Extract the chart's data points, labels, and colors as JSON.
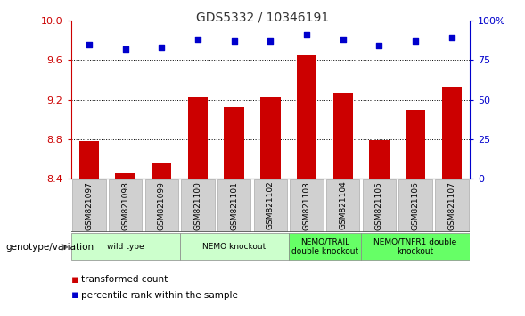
{
  "title": "GDS5332 / 10346191",
  "samples": [
    "GSM821097",
    "GSM821098",
    "GSM821099",
    "GSM821100",
    "GSM821101",
    "GSM821102",
    "GSM821103",
    "GSM821104",
    "GSM821105",
    "GSM821106",
    "GSM821107"
  ],
  "bar_values": [
    8.78,
    8.45,
    8.55,
    9.22,
    9.12,
    9.22,
    9.65,
    9.27,
    8.79,
    9.1,
    9.32
  ],
  "dot_values": [
    85,
    82,
    83,
    88,
    87,
    87,
    91,
    88,
    84,
    87,
    89
  ],
  "bar_color": "#cc0000",
  "dot_color": "#0000cc",
  "ylim_left": [
    8.4,
    10.0
  ],
  "ylim_right": [
    0,
    100
  ],
  "yticks_left": [
    8.4,
    8.8,
    9.2,
    9.6,
    10.0
  ],
  "yticks_right": [
    0,
    25,
    50,
    75,
    100
  ],
  "ytick_labels_right": [
    "0",
    "25",
    "50",
    "75",
    "100%"
  ],
  "grid_values": [
    8.8,
    9.2,
    9.6
  ],
  "groups": [
    {
      "label": "wild type",
      "start": 0,
      "end": 2,
      "color": "#ccffcc"
    },
    {
      "label": "NEMO knockout",
      "start": 3,
      "end": 5,
      "color": "#ccffcc"
    },
    {
      "label": "NEMO/TRAIL\ndouble knockout",
      "start": 6,
      "end": 7,
      "color": "#66ff66"
    },
    {
      "label": "NEMO/TNFR1 double\nknockout",
      "start": 8,
      "end": 10,
      "color": "#66ff66"
    }
  ],
  "legend_items": [
    {
      "color": "#cc0000",
      "label": "transformed count"
    },
    {
      "color": "#0000cc",
      "label": "percentile rank within the sample"
    }
  ],
  "sample_box_color": "#d0d0d0",
  "plot_bg_color": "#ffffff",
  "spine_color": "#000000"
}
